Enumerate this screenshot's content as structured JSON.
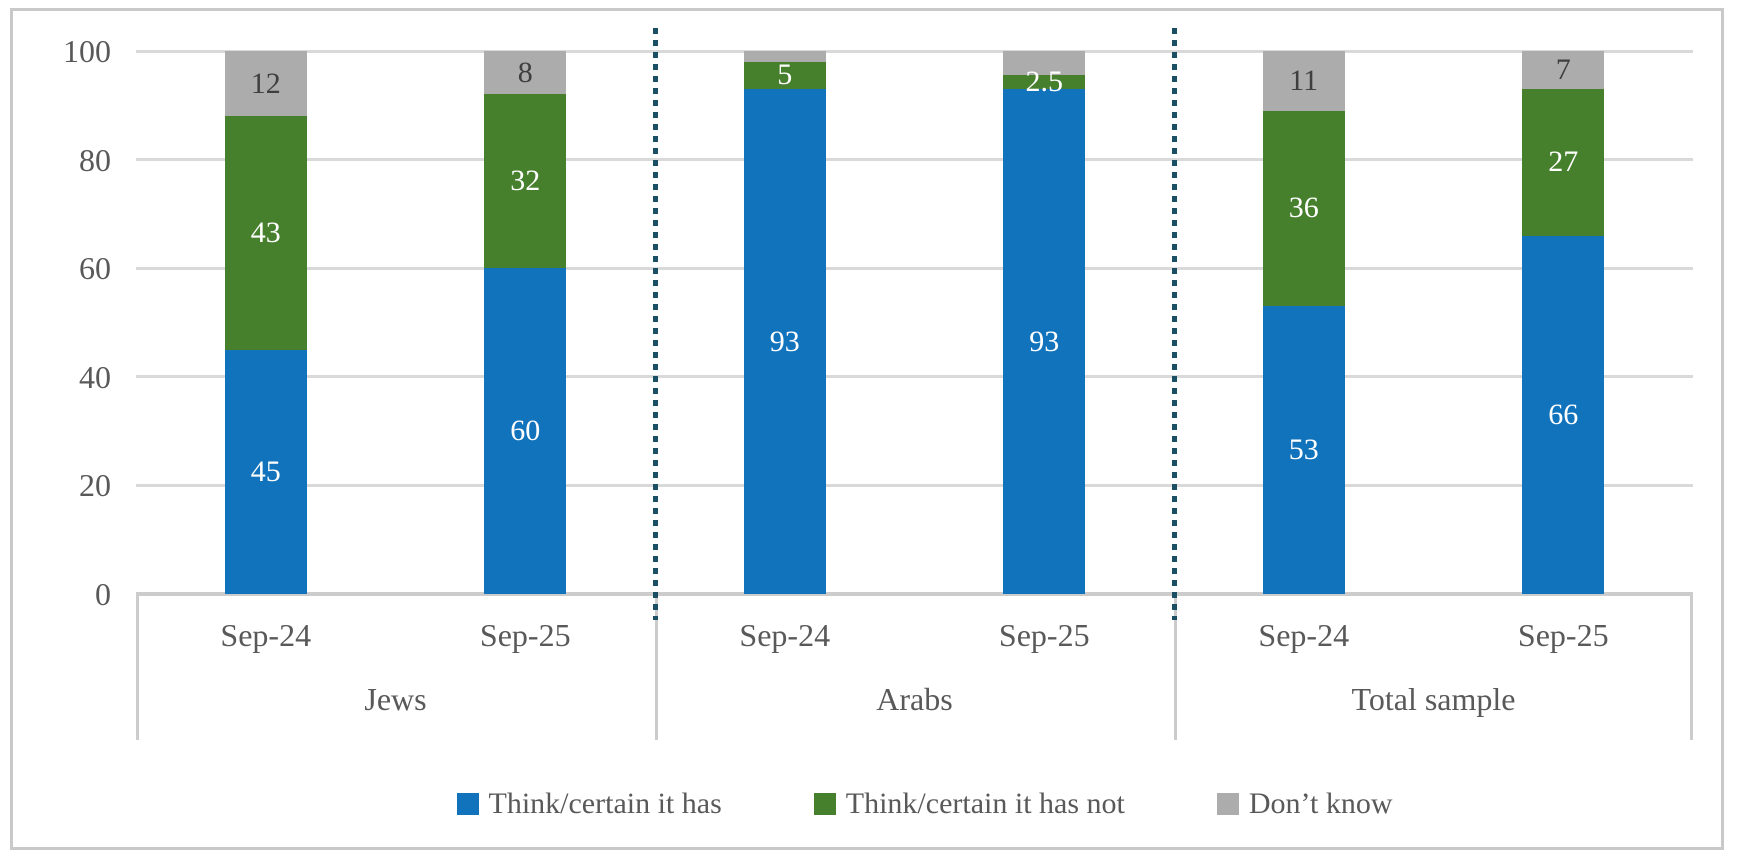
{
  "chart_data": {
    "type": "bar",
    "subtype": "stacked-column",
    "title": "",
    "xlabel": "",
    "ylabel": "",
    "ylim": [
      0,
      100
    ],
    "yticks": [
      "0",
      "20",
      "40",
      "60",
      "80",
      "100"
    ],
    "grid": true,
    "legend_position": "bottom",
    "series_meta": [
      {
        "key": "has",
        "name": "Think/certain it has",
        "color": "#1273bd",
        "label_color": "#ffffff"
      },
      {
        "key": "has_not",
        "name": "Think/certain it has not",
        "color": "#46802d",
        "label_color": "#ffffff"
      },
      {
        "key": "dont_know",
        "name": "Don’t know",
        "color": "#acacac",
        "label_color": "#3f3f3f"
      }
    ],
    "groups": [
      {
        "label": "Jews",
        "bars": [
          {
            "category": "Sep-24",
            "segments": [
              {
                "series": "has",
                "value": 45,
                "label": "45"
              },
              {
                "series": "has_not",
                "value": 43,
                "label": "43"
              },
              {
                "series": "dont_know",
                "value": 12,
                "label": "12"
              }
            ]
          },
          {
            "category": "Sep-25",
            "segments": [
              {
                "series": "has",
                "value": 60,
                "label": "60"
              },
              {
                "series": "has_not",
                "value": 32,
                "label": "32"
              },
              {
                "series": "dont_know",
                "value": 8,
                "label": "8"
              }
            ]
          }
        ]
      },
      {
        "label": "Arabs",
        "bars": [
          {
            "category": "Sep-24",
            "segments": [
              {
                "series": "has",
                "value": 93,
                "label": "93"
              },
              {
                "series": "has_not",
                "value": 5,
                "label": "5"
              },
              {
                "series": "dont_know",
                "value": 2,
                "label": ""
              }
            ]
          },
          {
            "category": "Sep-25",
            "segments": [
              {
                "series": "has",
                "value": 93,
                "label": "93"
              },
              {
                "series": "has_not",
                "value": 2.5,
                "label": "2.5"
              },
              {
                "series": "dont_know",
                "value": 4.5,
                "label": ""
              }
            ]
          }
        ]
      },
      {
        "label": "Total sample",
        "bars": [
          {
            "category": "Sep-24",
            "segments": [
              {
                "series": "has",
                "value": 53,
                "label": "53"
              },
              {
                "series": "has_not",
                "value": 36,
                "label": "36"
              },
              {
                "series": "dont_know",
                "value": 11,
                "label": "11"
              }
            ]
          },
          {
            "category": "Sep-25",
            "segments": [
              {
                "series": "has",
                "value": 66,
                "label": "66"
              },
              {
                "series": "has_not",
                "value": 27,
                "label": "27"
              },
              {
                "series": "dont_know",
                "value": 7,
                "label": "7"
              }
            ]
          }
        ]
      }
    ],
    "separator_color": "#1b4f63"
  },
  "colors": {
    "gridline": "#d9d9d9",
    "axis_frame": "#cccccc",
    "outer_border": "#c9c9c9",
    "axis_text": "#595959",
    "background": "#ffffff"
  }
}
